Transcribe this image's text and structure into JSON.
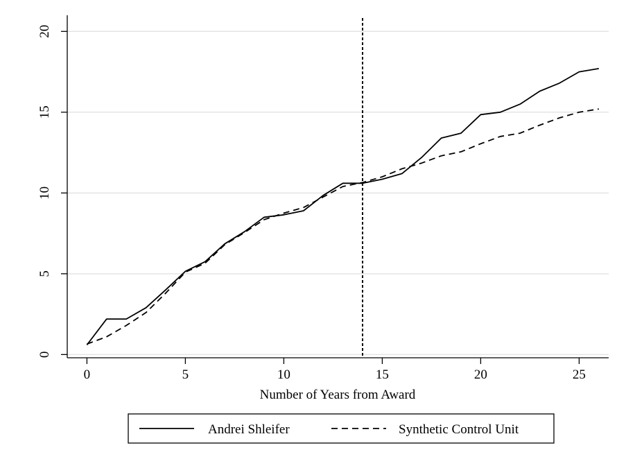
{
  "chart_data": {
    "type": "line",
    "title": "",
    "xlabel": "Number of Years from Award",
    "ylabel": "",
    "xlim": [
      -1,
      26.5
    ],
    "ylim": [
      -0.2,
      21.0
    ],
    "xticks": [
      0,
      5,
      10,
      15,
      20,
      25
    ],
    "yticks": [
      0,
      5,
      10,
      15,
      20
    ],
    "grid": "horizontal",
    "legend_position": "bottom",
    "vline": {
      "x": 14,
      "style": "dotted"
    },
    "series": [
      {
        "name": "Andrei Shleifer",
        "style": "solid",
        "x": [
          0,
          1,
          2,
          3,
          4,
          5,
          6,
          7,
          8,
          9,
          10,
          11,
          12,
          13,
          14,
          15,
          16,
          17,
          18,
          19,
          20,
          21,
          22,
          23,
          24,
          25,
          26
        ],
        "values": [
          0.6,
          2.2,
          2.2,
          2.9,
          4.0,
          5.15,
          5.75,
          6.85,
          7.6,
          8.5,
          8.65,
          8.9,
          9.85,
          10.6,
          10.6,
          10.85,
          11.2,
          12.2,
          13.4,
          13.7,
          14.85,
          15.0,
          15.5,
          16.3,
          16.8,
          17.5,
          17.7
        ]
      },
      {
        "name": "Synthetic Control Unit",
        "style": "dashed",
        "x": [
          0,
          1,
          2,
          3,
          4,
          5,
          6,
          7,
          8,
          9,
          10,
          11,
          12,
          13,
          14,
          15,
          16,
          17,
          18,
          19,
          20,
          21,
          22,
          23,
          24,
          25,
          26
        ],
        "values": [
          0.65,
          1.1,
          1.8,
          2.6,
          3.8,
          5.1,
          5.65,
          6.8,
          7.55,
          8.35,
          8.75,
          9.1,
          9.75,
          10.4,
          10.65,
          11.0,
          11.5,
          11.85,
          12.3,
          12.55,
          13.05,
          13.5,
          13.7,
          14.2,
          14.65,
          15.0,
          15.2
        ]
      }
    ]
  },
  "colors": {
    "line": "#000000",
    "grid": "#e4e4e4",
    "frame": "#000000",
    "legend_border": "#000000"
  }
}
